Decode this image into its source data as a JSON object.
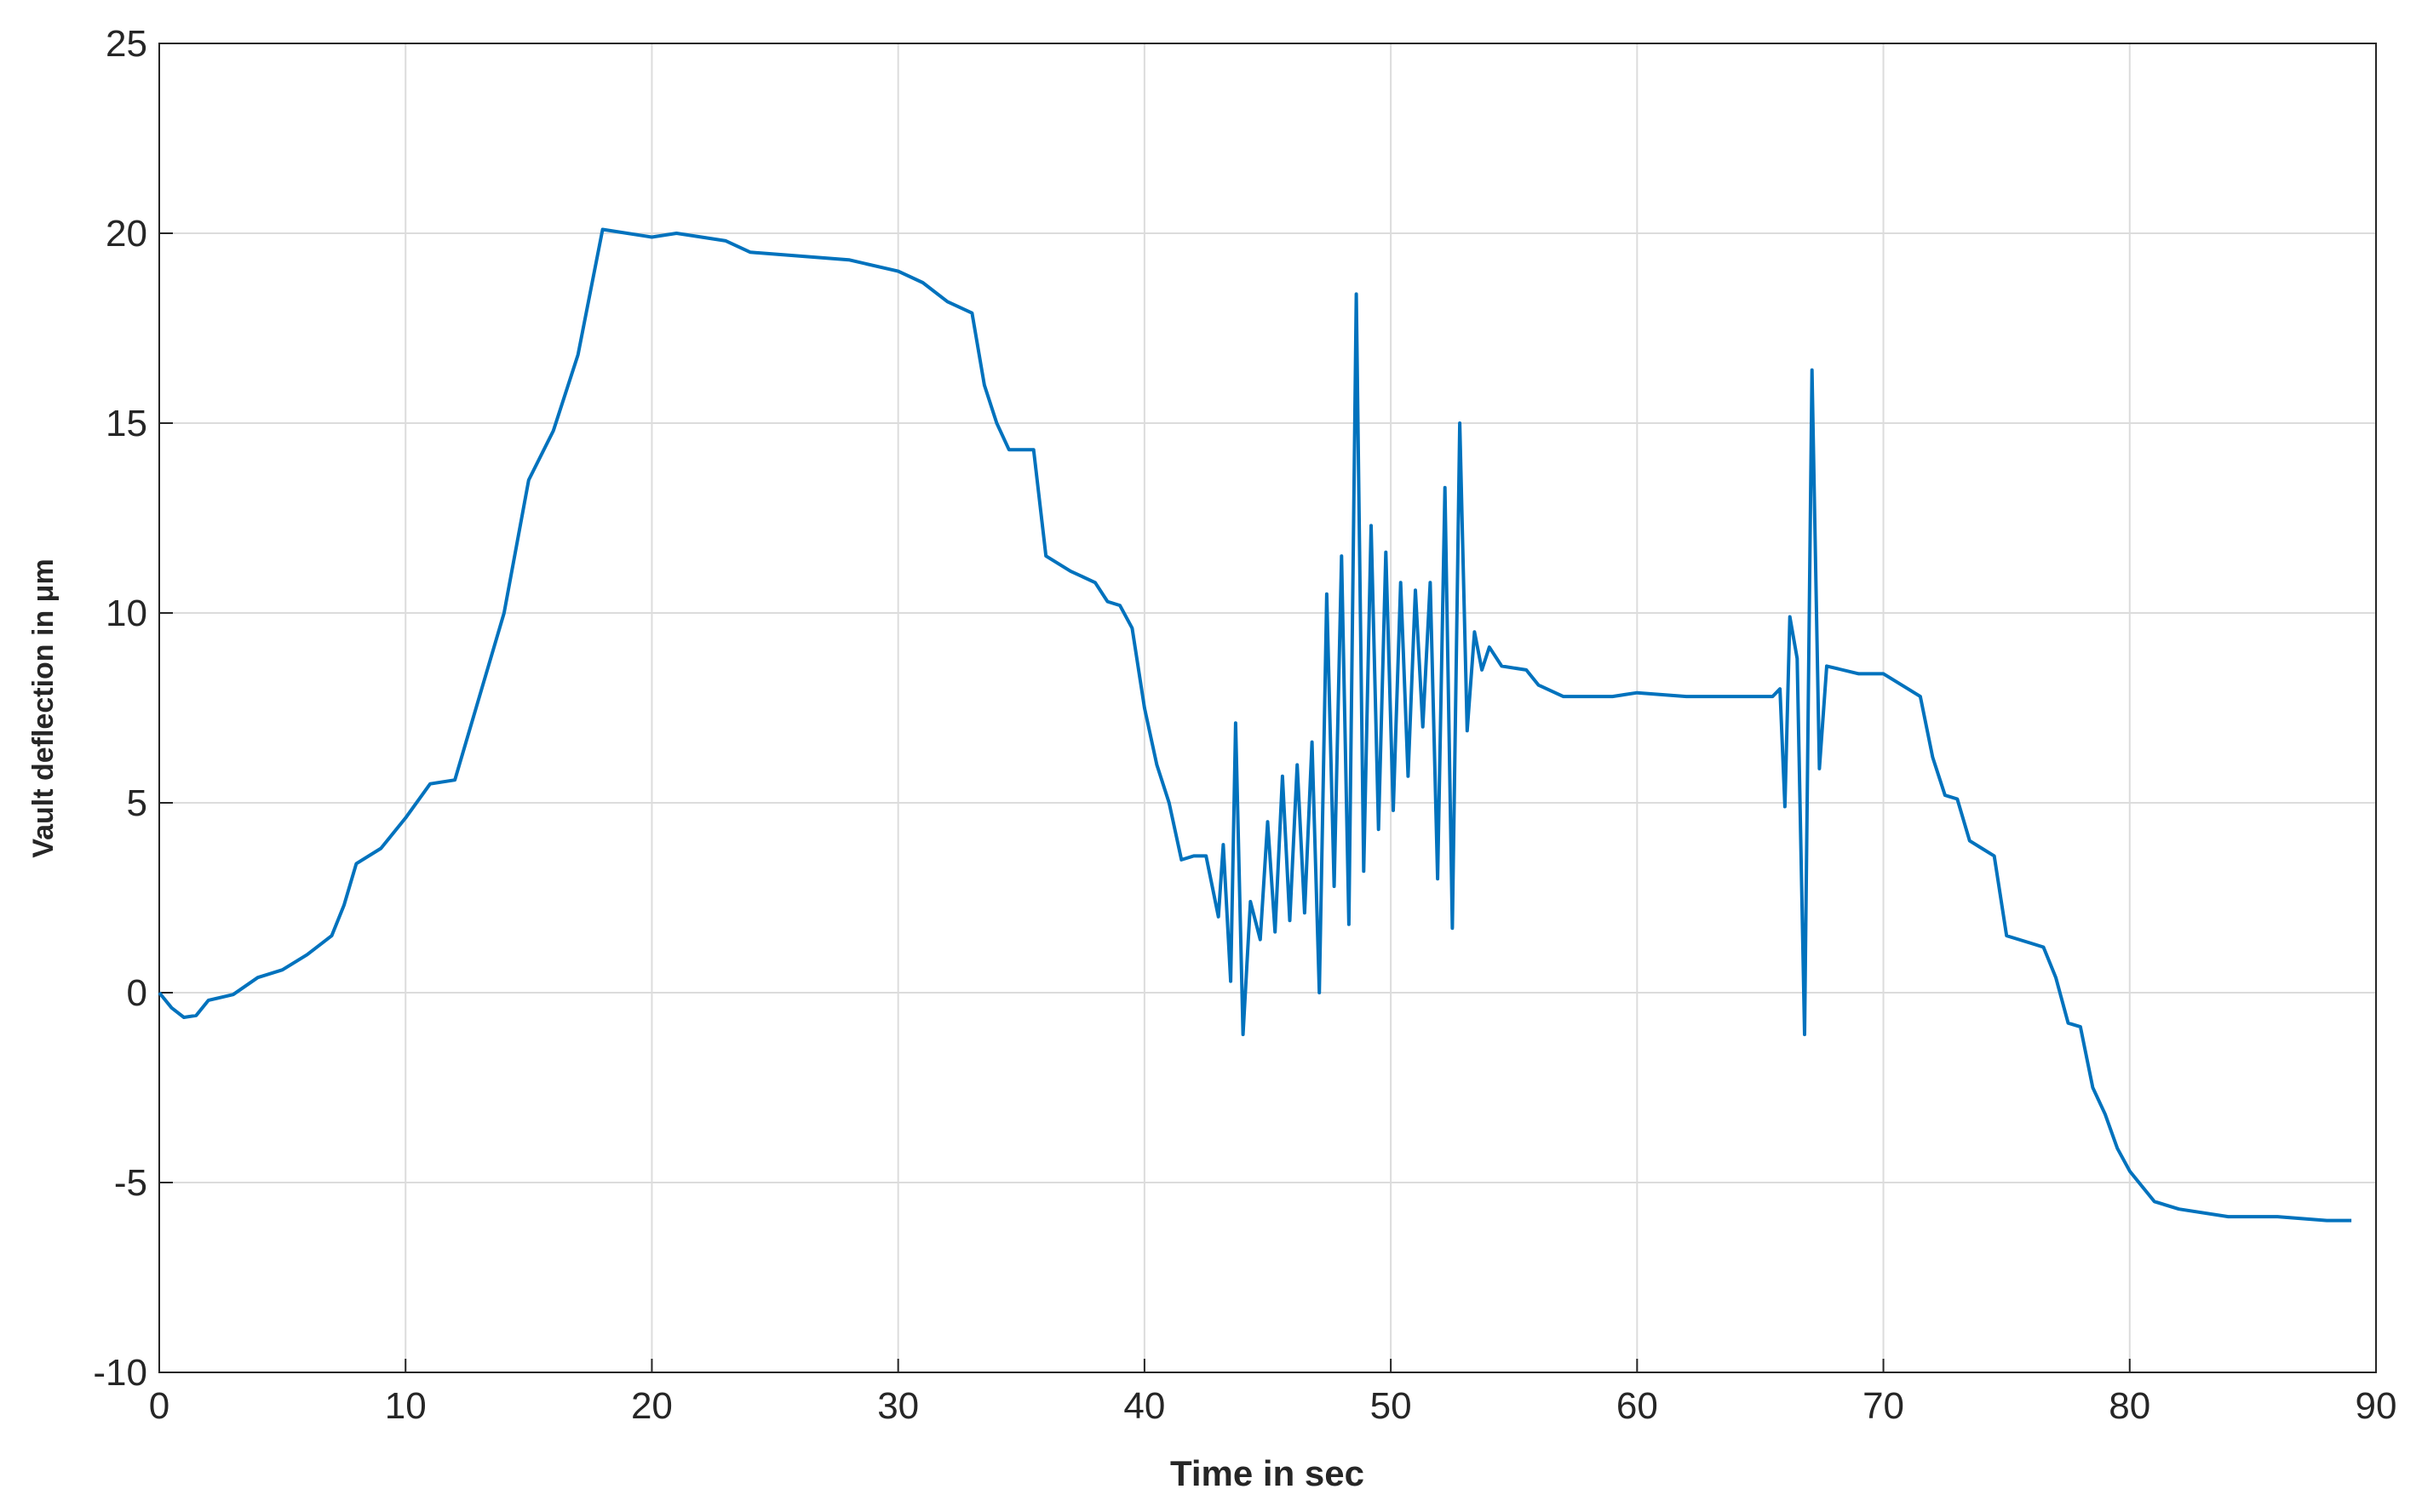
{
  "chart_data": {
    "type": "line",
    "xlabel": "Time in sec",
    "ylabel": "Vault deflection in μm",
    "xlim": [
      0,
      90
    ],
    "xticks": [
      0,
      10,
      20,
      30,
      40,
      50,
      60,
      70,
      80,
      90
    ],
    "ylim": [
      -10,
      25
    ],
    "yticks": [
      -10,
      -5,
      0,
      5,
      10,
      15,
      20,
      25
    ],
    "grid": true,
    "x": [
      0,
      0.5,
      1,
      1.5,
      2,
      3,
      4,
      5,
      6,
      7,
      7.5,
      8,
      9,
      10,
      11,
      12,
      13,
      14,
      15,
      16,
      17,
      18,
      20,
      21,
      23,
      24,
      26,
      28,
      30,
      31,
      32,
      33,
      33.5,
      34,
      34.5,
      35.5,
      36,
      37,
      38,
      38.5,
      39,
      39.5,
      40,
      40.5,
      41,
      41.5,
      42,
      42.5,
      43,
      43.2,
      43.5,
      43.7,
      44,
      44.3,
      44.7,
      45,
      45.3,
      45.6,
      45.9,
      46.2,
      46.5,
      46.8,
      47.1,
      47.4,
      47.7,
      48,
      48.3,
      48.6,
      48.9,
      49.2,
      49.5,
      49.8,
      50.1,
      50.4,
      50.7,
      51,
      51.3,
      51.6,
      51.9,
      52.2,
      52.5,
      52.8,
      53.1,
      53.4,
      53.7,
      54,
      54.5,
      55.5,
      56,
      57,
      59,
      60,
      62,
      64,
      65.5,
      65.8,
      66,
      66.2,
      66.5,
      66.8,
      67.1,
      67.4,
      67.7,
      69,
      70,
      71,
      71.5,
      72,
      72.5,
      73,
      73.5,
      74,
      74.5,
      75,
      76,
      76.5,
      77,
      77.5,
      78,
      78.5,
      79,
      79.5,
      80,
      81,
      82,
      84,
      86,
      88,
      89
    ],
    "series": [
      {
        "name": "deflection",
        "color": "#0072bd",
        "values": [
          0,
          -0.4,
          -0.65,
          -0.6,
          -0.2,
          -0.05,
          0.4,
          0.6,
          1.0,
          1.5,
          2.3,
          3.4,
          3.8,
          4.6,
          5.5,
          5.6,
          7.8,
          10,
          13.5,
          14.8,
          16.8,
          20.1,
          19.9,
          20,
          19.8,
          19.5,
          19.4,
          19.3,
          19.0,
          18.7,
          18.2,
          17.9,
          16,
          15,
          14.3,
          14.3,
          11.5,
          11.1,
          10.8,
          10.3,
          10.2,
          9.6,
          7.5,
          6,
          5,
          3.5,
          3.6,
          3.6,
          2,
          3.9,
          0.3,
          7.1,
          -1.1,
          2.4,
          1.4,
          4.5,
          1.6,
          5.7,
          1.9,
          6.0,
          2.1,
          6.6,
          0,
          10.5,
          2.8,
          11.5,
          1.8,
          18.4,
          3.2,
          12.3,
          4.3,
          11.6,
          4.8,
          10.8,
          5.7,
          10.6,
          7,
          10.8,
          3,
          13.3,
          1.7,
          15,
          6.9,
          9.5,
          8.5,
          9.1,
          8.6,
          8.5,
          8.1,
          7.8,
          7.8,
          7.9,
          7.8,
          7.8,
          7.8,
          8,
          4.9,
          9.9,
          8.8,
          -1.1,
          16.4,
          5.9,
          8.6,
          8.4,
          8.4,
          8,
          7.8,
          6.2,
          5.2,
          5.1,
          4.0,
          3.8,
          3.6,
          1.5,
          1.3,
          1.2,
          0.4,
          -0.8,
          -0.9,
          -2.5,
          -3.2,
          -4.1,
          -4.7,
          -5.5,
          -5.7,
          -5.9,
          -5.9,
          -6.0,
          -6.0
        ]
      }
    ]
  }
}
